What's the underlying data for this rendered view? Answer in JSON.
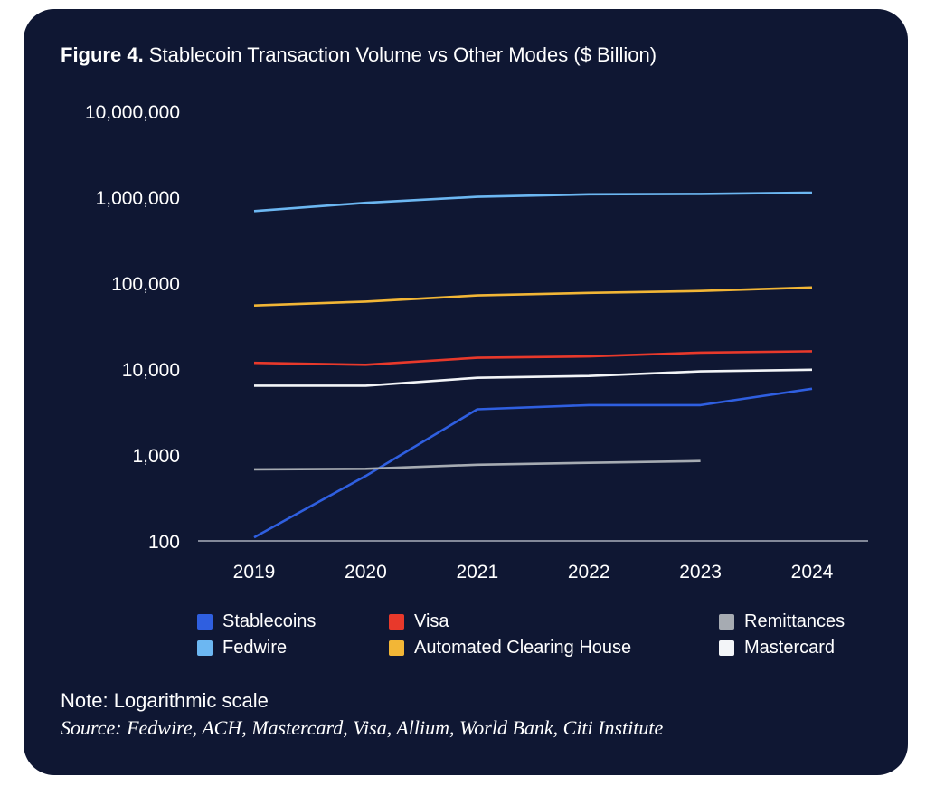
{
  "figure": {
    "title_lead": "Figure 4.",
    "title_rest": " Stablecoin Transaction Volume vs Other Modes ($ Billion)",
    "note": "Note: Logarithmic scale",
    "source": "Source: Fedwire, ACH, Mastercard, Visa, Allium, World Bank, Citi Institute"
  },
  "chart_data": {
    "type": "line",
    "title": "Figure 4. Stablecoin Transaction Volume vs Other Modes ($ Billion)",
    "xlabel": "",
    "ylabel": "",
    "yscale": "log",
    "ylim": [
      100,
      10000000
    ],
    "y_ticks": [
      100,
      1000,
      10000,
      100000,
      1000000,
      10000000
    ],
    "y_tick_labels": [
      "100",
      "1,000",
      "10,000",
      "100,000",
      "1,000,000",
      "10,000,000"
    ],
    "categories": [
      "2019",
      "2020",
      "2021",
      "2022",
      "2023",
      "2024"
    ],
    "grid": false,
    "legend_position": "bottom",
    "series": [
      {
        "name": "Stablecoins",
        "color": "#2f5fe0",
        "values": [
          110,
          570,
          3400,
          3800,
          3800,
          5900
        ]
      },
      {
        "name": "Visa",
        "color": "#e8392b",
        "values": [
          11800,
          11200,
          13500,
          14000,
          15500,
          16100
        ]
      },
      {
        "name": "Remittances",
        "color": "#a6abb2",
        "values": [
          680,
          690,
          770,
          810,
          850,
          null
        ]
      },
      {
        "name": "Fedwire",
        "color": "#6cb7f2",
        "values": [
          690000,
          860000,
          1010000,
          1080000,
          1090000,
          1130000
        ]
      },
      {
        "name": "Automated Clearing House",
        "color": "#f2b636",
        "values": [
          55000,
          61000,
          72000,
          77000,
          81000,
          89000
        ]
      },
      {
        "name": "Mastercard",
        "color": "#f3f5f8",
        "values": [
          6400,
          6400,
          7900,
          8300,
          9400,
          9800
        ]
      }
    ]
  }
}
